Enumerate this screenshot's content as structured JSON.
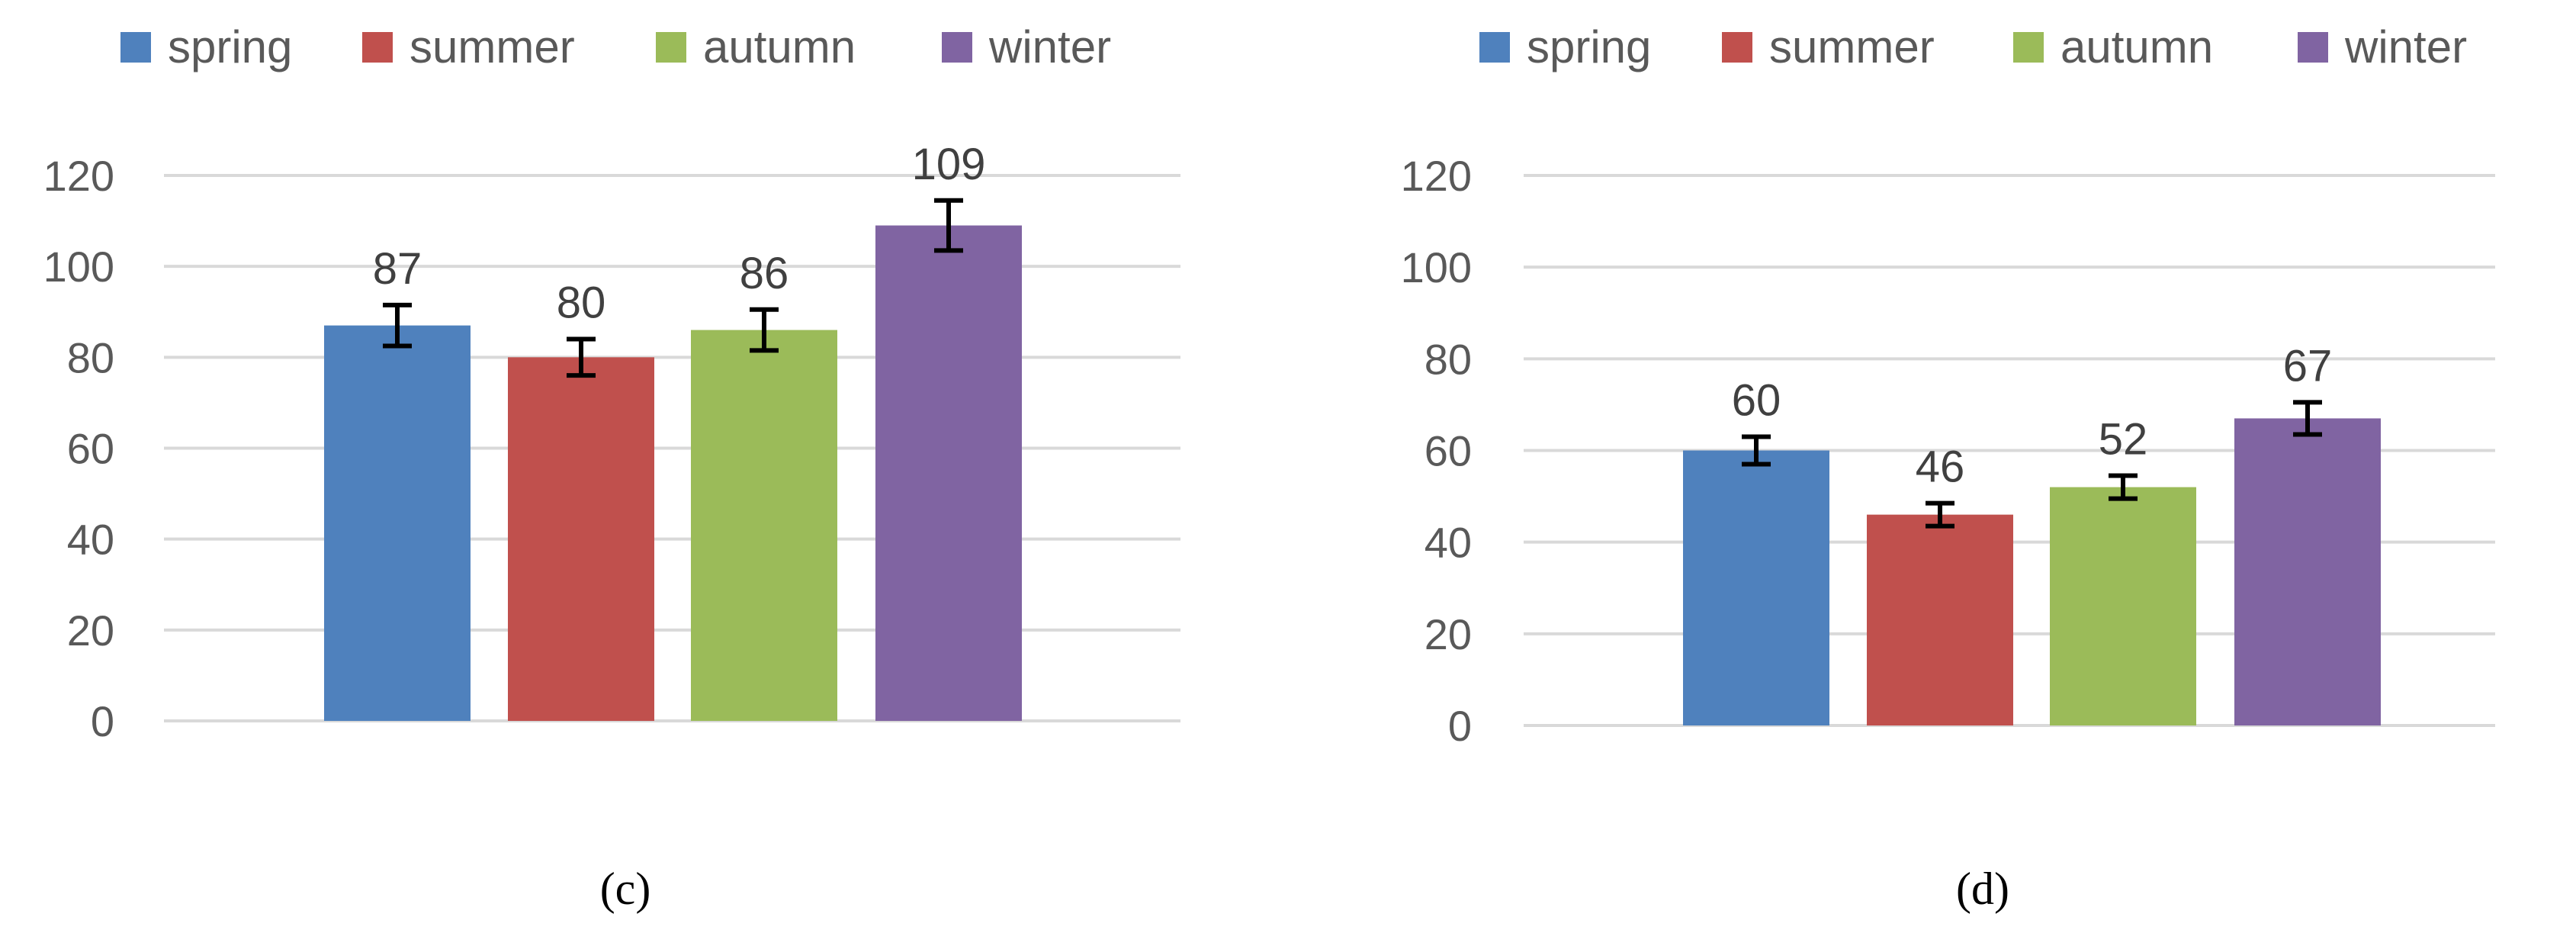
{
  "chart_data": [
    {
      "type": "bar",
      "caption": "(c)",
      "series": [
        {
          "name": "spring",
          "color": "#4F81BD",
          "value": 87,
          "error": 4.5
        },
        {
          "name": "summer",
          "color": "#C0504D",
          "value": 80,
          "error": 4
        },
        {
          "name": "autumn",
          "color": "#9BBB59",
          "value": 86,
          "error": 4.5
        },
        {
          "name": "winter",
          "color": "#8064A2",
          "value": 109,
          "error": 5.5
        }
      ],
      "data_labels": [
        "87",
        "80",
        "86",
        "109"
      ],
      "ylim": [
        0,
        120
      ],
      "yticks": [
        "0",
        "20",
        "40",
        "60",
        "80",
        "100",
        "120"
      ],
      "grid": true,
      "legend": "top"
    },
    {
      "type": "bar",
      "caption": "(d)",
      "series": [
        {
          "name": "spring",
          "color": "#4F81BD",
          "value": 60,
          "error": 3
        },
        {
          "name": "summer",
          "color": "#C0504D",
          "value": 46,
          "error": 2.5
        },
        {
          "name": "autumn",
          "color": "#9BBB59",
          "value": 52,
          "error": 2.5
        },
        {
          "name": "winter",
          "color": "#8064A2",
          "value": 67,
          "error": 3.5
        }
      ],
      "data_labels": [
        "60",
        "46",
        "52",
        "67"
      ],
      "ylim": [
        0,
        120
      ],
      "yticks": [
        "0",
        "20",
        "40",
        "60",
        "80",
        "100",
        "120"
      ],
      "grid": true,
      "legend": "top"
    }
  ]
}
